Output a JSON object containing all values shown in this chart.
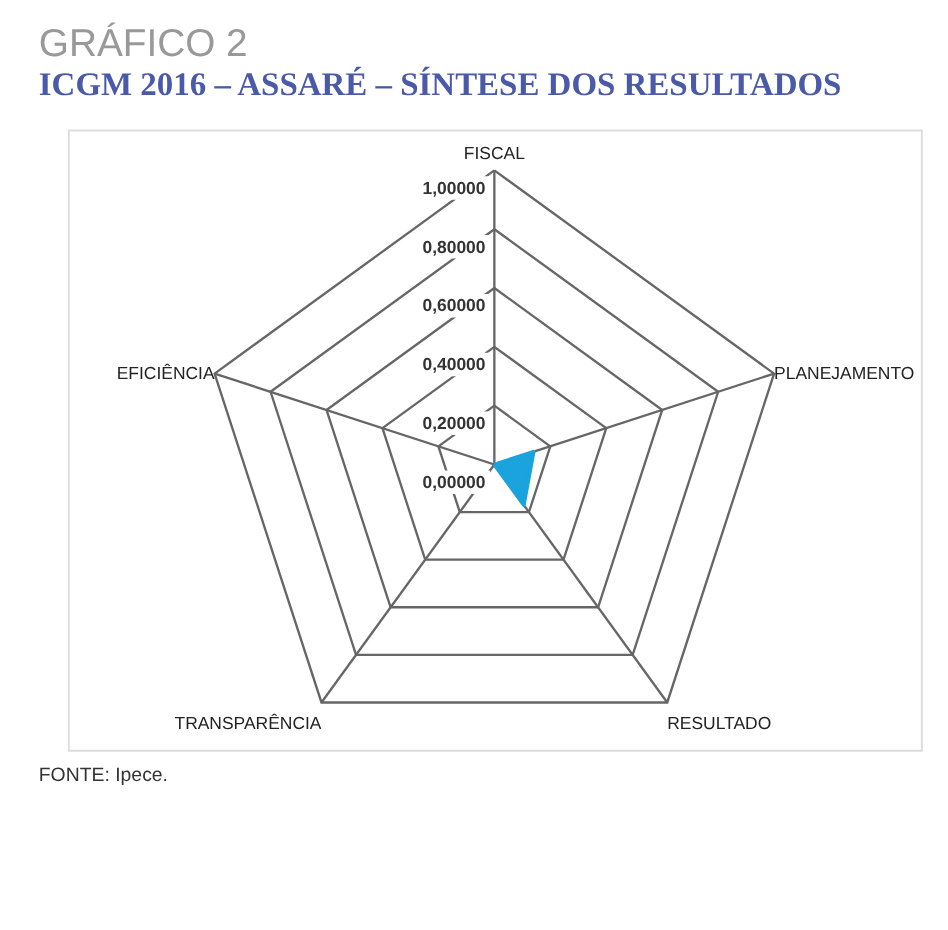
{
  "chart_data": {
    "type": "radar",
    "title": "GRÁFICO 2",
    "subtitle": "ICGM 2016 – ASSARÉ – SÍNTESE DOS RESULTADOS",
    "categories": [
      "FISCAL",
      "PLANEJAMENTO",
      "RESULTADO",
      "TRANSPARÊNCIA",
      "EFICIÊNCIA"
    ],
    "series": [
      {
        "color": "#1aa3dc",
        "values": [
          0,
          0.14,
          0.17,
          0,
          0
        ]
      }
    ],
    "ylim": [
      0,
      1
    ],
    "yticks": [
      {
        "value": 0,
        "label": "0,00000"
      },
      {
        "value": 0.2,
        "label": "0,20000"
      },
      {
        "value": 0.4,
        "label": "0,40000"
      },
      {
        "value": 0.6,
        "label": "0,60000"
      },
      {
        "value": 0.8,
        "label": "0,80000"
      },
      {
        "value": 1,
        "label": "1,00000"
      }
    ],
    "annotations": [
      "FONTE: Ipece."
    ]
  }
}
